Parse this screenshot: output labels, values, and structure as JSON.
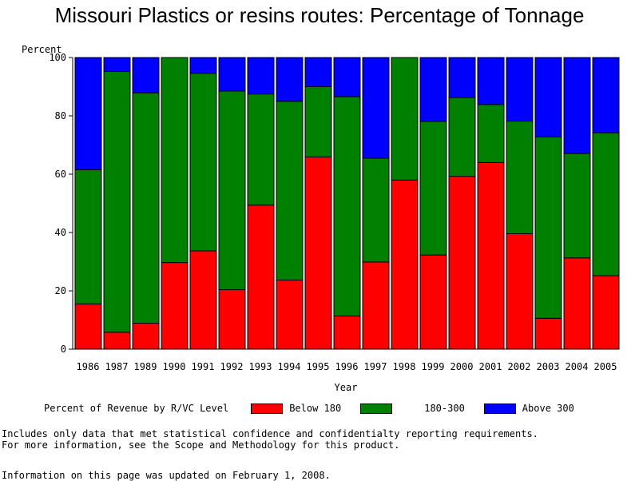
{
  "chart_data": {
    "type": "bar",
    "stacked": true,
    "title": "Missouri Plastics or resins routes: Percentage of Tonnage",
    "xlabel": "Year",
    "ylabel": "Percent",
    "ylim": [
      0,
      100
    ],
    "yticks": [
      "0",
      "20",
      "40",
      "60",
      "80",
      "100"
    ],
    "categories": [
      "1986",
      "1987",
      "1989",
      "1990",
      "1991",
      "1992",
      "1993",
      "1994",
      "1995",
      "1996",
      "1997",
      "1998",
      "1999",
      "2000",
      "2001",
      "2002",
      "2003",
      "2004",
      "2005"
    ],
    "series": [
      {
        "name": "Below 180",
        "color": "#ff0000",
        "values": [
          15.5,
          5.8,
          8.9,
          29.7,
          33.7,
          20.4,
          49.4,
          23.7,
          65.9,
          11.4,
          29.9,
          58.0,
          32.3,
          59.3,
          64.0,
          39.6,
          10.6,
          31.3,
          25.2
        ]
      },
      {
        "name": "180-300",
        "color": "#008000",
        "values": [
          46.0,
          89.4,
          79.0,
          70.3,
          60.9,
          68.1,
          38.1,
          61.3,
          24.1,
          75.2,
          35.6,
          42.0,
          45.8,
          27.0,
          19.9,
          38.6,
          62.2,
          35.8,
          49.0
        ]
      },
      {
        "name": "Above 300",
        "color": "#0000ff",
        "values": [
          38.5,
          4.8,
          12.1,
          0.0,
          5.4,
          11.5,
          12.5,
          15.0,
          10.0,
          13.4,
          34.5,
          0.0,
          21.9,
          13.7,
          16.1,
          21.8,
          27.2,
          32.9,
          25.8
        ]
      }
    ],
    "legend": {
      "title": "Percent of Revenue by R/VC Level",
      "position": "bottom"
    }
  },
  "notes": {
    "line1": "Includes only data that met statistical confidence and confidentialty reporting requirements.",
    "line2": "For more information, see the Scope and Methodology for this product.",
    "updated": "Information on this page was updated on February 1, 2008."
  }
}
